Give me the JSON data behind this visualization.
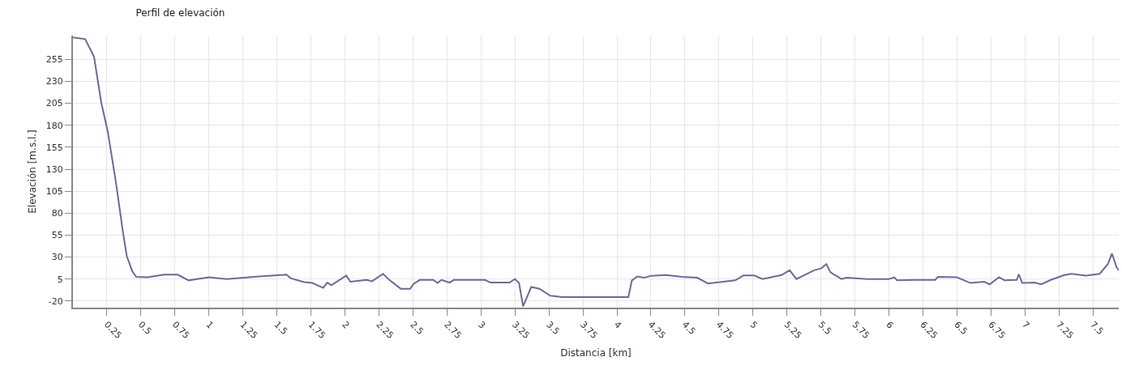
{
  "chart_data": {
    "type": "line",
    "title": "Perfil de elevación",
    "xlabel": "Distancia [km]",
    "ylabel": "Elevación [m.s.l.]",
    "x": [
      0,
      0.09,
      0.155,
      0.208,
      0.257,
      0.317,
      0.367,
      0.396,
      0.436,
      0.465,
      0.55,
      0.67,
      0.77,
      0.85,
      1.0,
      1.13,
      1.37,
      1.57,
      1.6,
      1.7,
      1.76,
      1.84,
      1.87,
      1.9,
      2.01,
      2.04,
      2.16,
      2.2,
      2.28,
      2.33,
      2.41,
      2.48,
      2.505,
      2.55,
      2.65,
      2.68,
      2.71,
      2.77,
      2.8,
      3.03,
      3.07,
      3.21,
      3.25,
      3.28,
      3.31,
      3.37,
      3.43,
      3.51,
      3.6,
      4.084,
      4.11,
      4.15,
      4.2,
      4.25,
      4.36,
      4.48,
      4.59,
      4.67,
      4.73,
      4.87,
      4.93,
      5.01,
      5.07,
      5.21,
      5.27,
      5.32,
      5.45,
      5.5,
      5.54,
      5.57,
      5.65,
      5.69,
      5.84,
      6.0,
      6.04,
      6.06,
      6.2,
      6.34,
      6.36,
      6.5,
      6.6,
      6.7,
      6.74,
      6.81,
      6.85,
      6.94,
      6.955,
      6.98,
      7.07,
      7.12,
      7.19,
      7.29,
      7.34,
      7.45,
      7.55,
      7.61,
      7.64,
      7.675,
      7.69
    ],
    "series": [
      {
        "color": "#6a6a9c",
        "values": [
          280,
          278,
          258,
          206,
          172,
          114,
          59,
          31,
          14,
          7.5,
          7,
          10,
          10,
          3.5,
          7,
          5,
          8,
          10,
          6,
          1.5,
          0.5,
          -5,
          1,
          -2,
          9,
          2,
          4,
          2.5,
          11,
          3.5,
          -6,
          -6,
          -0.5,
          4,
          4,
          0.5,
          4,
          1,
          4,
          4,
          1,
          1,
          5,
          0.5,
          -26,
          -4,
          -6,
          -14,
          -15.5,
          -15.5,
          3.5,
          8,
          6.5,
          8.7,
          9.5,
          7.5,
          6.5,
          0,
          1,
          3.5,
          9,
          9,
          5,
          9.5,
          15,
          5,
          15,
          17,
          22,
          12.7,
          5,
          6.6,
          5,
          5,
          7,
          3.5,
          4,
          4,
          7.5,
          7,
          0.5,
          2,
          -1,
          7,
          3.5,
          4,
          10.5,
          0.5,
          1,
          -1,
          4,
          9.5,
          11,
          9,
          11,
          22,
          34,
          18,
          15
        ]
      }
    ],
    "xlim": [
      0,
      7.69
    ],
    "ylim": [
      -27.5,
      282
    ],
    "xticks": [
      0.25,
      0.5,
      0.75,
      1,
      1.25,
      1.5,
      1.75,
      2,
      2.25,
      2.5,
      2.75,
      3,
      3.25,
      3.5,
      3.75,
      4,
      4.25,
      4.5,
      4.75,
      5,
      5.25,
      5.5,
      5.75,
      6,
      6.25,
      6.5,
      6.75,
      7,
      7.25,
      7.5
    ],
    "yticks": [
      -20,
      5,
      30,
      55,
      80,
      105,
      130,
      155,
      180,
      205,
      230,
      255
    ],
    "grid": true,
    "marker": "none",
    "line_style": "solid"
  }
}
